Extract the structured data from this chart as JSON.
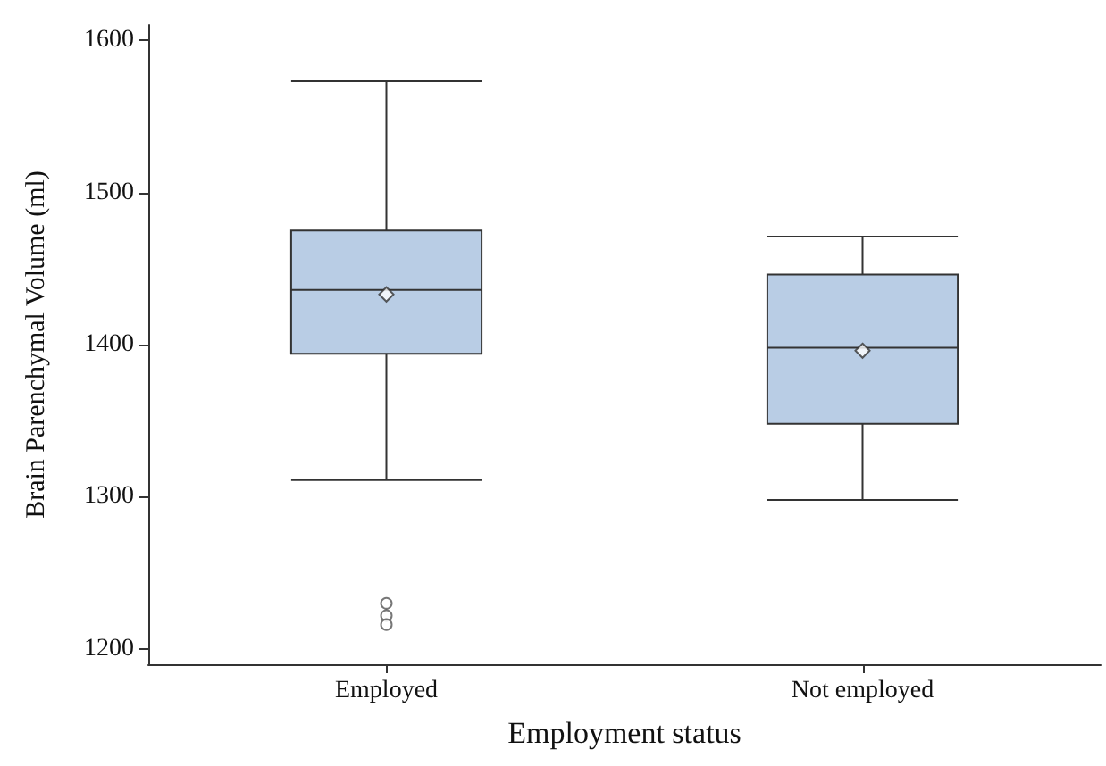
{
  "chart_data": {
    "type": "box",
    "xlabel": "Employment status",
    "ylabel": "Brain Parenchymal Volume (ml)",
    "categories": [
      "Employed",
      "Not employed"
    ],
    "color": "#b9cde5",
    "boxes": [
      {
        "low": 1311,
        "q1": 1394,
        "median": 1436,
        "q3": 1475,
        "high": 1573,
        "mean": 1433,
        "outliers": [
          1230,
          1222,
          1216
        ]
      },
      {
        "low": 1298,
        "q1": 1348,
        "median": 1398,
        "q3": 1446,
        "high": 1471,
        "mean": 1396
      }
    ],
    "ylim": [
      1190,
      1610
    ],
    "yticks": [
      1200,
      1300,
      1400,
      1500,
      1600
    ]
  }
}
